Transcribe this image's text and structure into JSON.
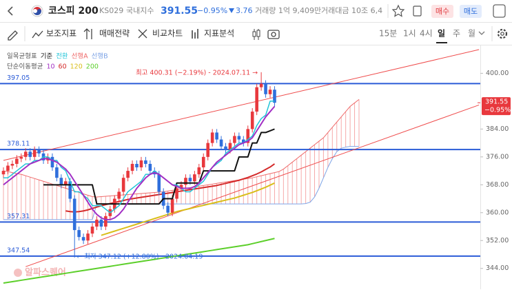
{
  "header": {
    "symbol": "코스피 200",
    "code": "KS029",
    "market": "국내지수",
    "price": "391.55",
    "change_pct": "−0.95%",
    "change": "3.76",
    "volume": "거래량 1억 9,409만",
    "trade_value": "거래대금 10조 6,4",
    "buy": "매수",
    "sell": "매도"
  },
  "toolbar": {
    "items": [
      "보조지표",
      "매매전략",
      "비교차트",
      "지표분석"
    ],
    "intervals": [
      "15분",
      "1시",
      "4시",
      "일",
      "주",
      "월"
    ]
  },
  "chart_data": {
    "type": "candlestick",
    "up_color": "#e8383d",
    "down_color": "#2f6fdc",
    "open": [
      371,
      372,
      373.5,
      374,
      375.5,
      376,
      377.5,
      376,
      378,
      377,
      375,
      376,
      373,
      370,
      368,
      369,
      364,
      355,
      353,
      352,
      354,
      356,
      358,
      356,
      359,
      361,
      364,
      366,
      370,
      372,
      374,
      373,
      375,
      374,
      372,
      371,
      366,
      362,
      360,
      364,
      367,
      368,
      370,
      369,
      371,
      373,
      376,
      380,
      383,
      381,
      379,
      378,
      380,
      382,
      381,
      380,
      384,
      389,
      396,
      397,
      394,
      395.3
    ],
    "high": [
      373,
      374.5,
      375,
      376.5,
      377,
      378.5,
      378.5,
      379,
      379,
      378,
      377,
      377,
      374,
      371,
      370,
      370,
      365,
      356,
      354,
      355,
      357,
      359,
      359,
      360,
      362,
      365,
      367,
      371,
      373,
      375,
      375,
      376,
      376,
      375,
      373,
      372,
      367,
      363,
      365,
      368,
      369,
      371,
      371,
      372,
      374,
      377,
      381,
      384,
      384,
      382,
      380,
      381,
      383,
      383,
      382,
      385,
      390,
      397,
      400.31,
      398,
      396.3,
      396.3
    ],
    "low": [
      370,
      371,
      372.5,
      373,
      374.5,
      375,
      375,
      375,
      376,
      374,
      374,
      372,
      369,
      367,
      367,
      363,
      347.12,
      352,
      351,
      351,
      353,
      355,
      355,
      355,
      358,
      360,
      363,
      365,
      369,
      371,
      372,
      372,
      373,
      371,
      370,
      365,
      361,
      359,
      359,
      363,
      366,
      367,
      368,
      368,
      370,
      372,
      375,
      379,
      380,
      378,
      377,
      377,
      379,
      380,
      379,
      379,
      383,
      388,
      395,
      393,
      393,
      390.5
    ],
    "close": [
      372,
      373.5,
      374,
      375.5,
      376,
      377.5,
      376,
      378,
      377,
      375,
      376,
      373,
      370,
      368,
      369,
      364,
      355,
      353,
      352,
      354,
      356,
      358,
      356,
      359,
      361,
      364,
      366,
      370,
      372,
      374,
      373,
      375,
      374,
      372,
      371,
      366,
      362,
      360,
      364,
      367,
      368,
      370,
      369,
      371,
      373,
      376,
      380,
      383,
      381,
      379,
      378,
      380,
      382,
      381,
      380,
      384,
      389,
      396,
      397,
      394,
      395.3,
      391.55
    ],
    "indicators": [
      {
        "name": "일목균형표",
        "series": [
          {
            "name": "기준",
            "color": "#111111",
            "width": 2,
            "values": [
              null,
              null,
              null,
              null,
              null,
              null,
              null,
              null,
              null,
              368,
              368,
              368,
              368,
              368,
              368,
              368,
              368,
              368,
              368,
              368,
              368,
              362.5,
              362.5,
              362.5,
              362.5,
              362.5,
              362.5,
              362.5,
              362.5,
              362.5,
              362.5,
              362.5,
              362.5,
              362.5,
              362.5,
              362.5,
              364,
              364,
              364,
              368.5,
              368.5,
              368.5,
              368.5,
              368.5,
              368.5,
              372,
              372,
              372,
              372,
              372,
              372,
              372,
              372,
              376,
              376,
              376,
              380,
              380,
              383,
              383,
              383.5,
              384
            ]
          },
          {
            "name": "전환",
            "color": "#22c4d8",
            "width": 1.5,
            "values": [
              370,
              370,
              371,
              372,
              373,
              374,
              374,
              375,
              375,
              376,
              376,
              375,
              375,
              373,
              372,
              369,
              366,
              366,
              365,
              364,
              362,
              362,
              362,
              361,
              360,
              361,
              362,
              364,
              366,
              367,
              368,
              369,
              371,
              371,
              372,
              371,
              370,
              369,
              368,
              368,
              367,
              366,
              366,
              367,
              368,
              369,
              371,
              373,
              374,
              375,
              377,
              378,
              379,
              380,
              380,
              381,
              382,
              385,
              387,
              388,
              392,
              392
            ]
          },
          {
            "name": "선행A",
            "color": "#ef6a6a",
            "width": 1,
            "values": [
              372,
              371.8,
              371.5,
              371.2,
              371,
              370.6,
              370.2,
              369.8,
              369.4,
              369,
              368.6,
              368.2,
              367.8,
              367.4,
              367,
              366.6,
              366.2,
              365.8,
              365.4,
              365,
              364.6,
              364.5,
              364.6,
              364.7,
              364.8,
              364.9,
              365,
              365.1,
              365.2,
              365.3,
              365.4,
              365.5,
              365.6,
              365.7,
              365.8,
              365.9,
              366,
              366.2,
              366.4,
              366.6,
              366.8,
              367,
              367.2,
              367.4,
              367.6,
              367.8,
              368,
              368.2,
              368.4,
              368.6,
              368.8,
              369,
              369.2,
              369.4,
              369.6,
              369.8,
              370,
              370.3,
              370.6,
              370.9,
              371.2,
              371.5,
              371.8,
              372.5,
              373.5,
              374.5,
              375.5,
              376.5,
              377.5,
              378.5,
              379.5,
              380.5,
              381.5,
              383,
              384.5,
              386,
              387.5,
              389,
              390.5,
              391.5,
              392.5
            ]
          },
          {
            "name": "선행B",
            "color": "#7ea4e6",
            "width": 1,
            "values": [
              358,
              358,
              358,
              358,
              358,
              358,
              358,
              358,
              358,
              358,
              358,
              358,
              358,
              358,
              358,
              358,
              358,
              358,
              358,
              358,
              358,
              362.5,
              362.5,
              362.5,
              362.5,
              362.5,
              362.5,
              362.5,
              362.5,
              362.5,
              362.5,
              362.5,
              362.5,
              362.5,
              362.5,
              362.5,
              362.5,
              362.5,
              362.5,
              362.5,
              362.5,
              362.5,
              362.5,
              362.5,
              362.5,
              362.5,
              362.5,
              362.5,
              362.5,
              362.5,
              362.5,
              362.5,
              362.5,
              362.5,
              362.5,
              362.5,
              362.5,
              362.5,
              362.5,
              362.5,
              362.5,
              362.5,
              362.5,
              362.5,
              362.5,
              362.5,
              362.5,
              362.5,
              362.6,
              363,
              364.5,
              367,
              370,
              373,
              375.5,
              377.5,
              378.5,
              378.8,
              379,
              379,
              379
            ]
          }
        ]
      },
      {
        "name": "단순이동평균",
        "series": [
          {
            "name": "10",
            "color": "#a22fc4",
            "width": 2,
            "values": [
              368,
              369,
              370,
              371,
              372,
              373,
              374,
              374.5,
              375,
              375.5,
              375.5,
              375,
              374.5,
              373.5,
              372.5,
              371,
              369,
              367,
              365,
              363,
              361,
              359.5,
              358.5,
              358,
              358,
              358.5,
              359.5,
              361,
              363,
              365,
              367,
              368.5,
              370,
              371,
              371.5,
              371,
              370,
              369,
              368,
              367.5,
              367,
              367,
              367,
              367.5,
              368.5,
              370,
              371.5,
              373,
              374.5,
              375.5,
              376.5,
              377.5,
              378.5,
              379.5,
              380,
              380.5,
              381.5,
              383.5,
              385.5,
              387.5,
              389,
              390.5
            ]
          },
          {
            "name": "60",
            "color": "#d42a2a",
            "width": 2,
            "values": [
              null,
              null,
              null,
              null,
              null,
              null,
              null,
              null,
              null,
              null,
              null,
              null,
              null,
              null,
              360.5,
              360.3,
              360.2,
              360.3,
              360.5,
              360.8,
              361.2,
              361.6,
              362,
              362.3,
              362.6,
              362.9,
              363.2,
              363.5,
              363.8,
              364,
              364.2,
              364.4,
              364.6,
              364.8,
              365,
              365.2,
              365.4,
              365.6,
              365.8,
              366,
              366.2,
              366.4,
              366.6,
              366.8,
              367,
              367.2,
              367.4,
              367.6,
              367.8,
              368.1,
              368.4,
              368.7,
              369,
              369.3,
              369.7,
              370.1,
              370.6,
              371.1,
              371.7,
              372.4,
              373.1,
              374
            ]
          },
          {
            "name": "120",
            "color": "#d9be1a",
            "width": 2,
            "values": [
              null,
              null,
              null,
              null,
              null,
              null,
              null,
              null,
              null,
              null,
              null,
              null,
              null,
              null,
              null,
              null,
              null,
              null,
              null,
              null,
              null,
              null,
              353.5,
              353.9,
              354.3,
              354.7,
              355.1,
              355.5,
              355.9,
              356.3,
              356.7,
              357.1,
              357.5,
              357.9,
              358.3,
              358.7,
              359.1,
              359.5,
              359.9,
              360.3,
              360.6,
              360.9,
              361.2,
              361.5,
              361.8,
              362.1,
              362.4,
              362.7,
              363,
              363.3,
              363.6,
              363.9,
              364.2,
              364.6,
              365,
              365.4,
              365.8,
              366.3,
              366.8,
              367.3,
              367.9,
              368.5
            ]
          },
          {
            "name": "200",
            "color": "#5ccf2a",
            "width": 2,
            "values": [
              339.8,
              340,
              340.2,
              340.4,
              340.6,
              340.8,
              341,
              341.2,
              341.4,
              341.6,
              341.8,
              342,
              342.2,
              342.4,
              342.6,
              342.8,
              343,
              343.2,
              343.4,
              343.6,
              343.8,
              344,
              344.2,
              344.4,
              344.6,
              344.8,
              345,
              345.2,
              345.4,
              345.6,
              345.8,
              346,
              346.2,
              346.4,
              346.6,
              346.8,
              347,
              347.2,
              347.4,
              347.6,
              347.8,
              348,
              348.2,
              348.4,
              348.6,
              348.8,
              349,
              349.2,
              349.4,
              349.6,
              349.8,
              350,
              350.2,
              350.4,
              350.6,
              350.8,
              351.1,
              351.4,
              351.7,
              352,
              352.3,
              352.6
            ]
          }
        ]
      }
    ],
    "levels": [
      397.05,
      378.11,
      357.31,
      347.54
    ],
    "level_color": "#2a5bd7",
    "trendlines": [
      {
        "x": [
          0,
          107
        ],
        "y": [
          375,
          406.8
        ]
      },
      {
        "x": [
          5,
          107
        ],
        "y": [
          344.5,
          390.9
        ]
      }
    ],
    "trendline_color": "#ef4b4b",
    "high_note": "최고 400.31 (−2.19%) - 2024.07.11 →",
    "low_note": "← 최저 347.12 (+12.80%) - 2024.04.19",
    "last_price": 391.55,
    "last_change": "−0.95%",
    "ylim": [
      339.6,
      407.2
    ],
    "yticks": [
      {
        "value": 344,
        "label": "344.00"
      },
      {
        "value": 352,
        "label": "352.00"
      },
      {
        "value": 360,
        "label": "360.00"
      },
      {
        "value": 368,
        "label": "368.00"
      },
      {
        "value": 376,
        "label": "376.00"
      },
      {
        "value": 384,
        "label": "384.00"
      },
      {
        "value": 400,
        "label": "400.00"
      }
    ],
    "watermark": "알파스퀘어"
  }
}
